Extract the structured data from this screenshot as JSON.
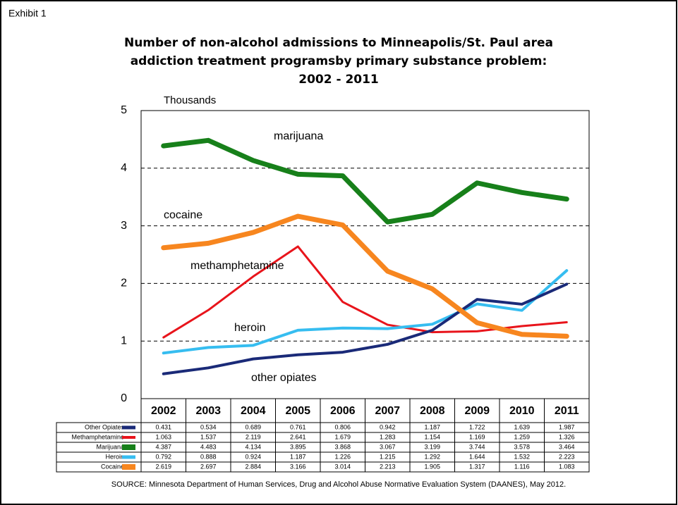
{
  "exhibit": "Exhibit 1",
  "chart_data": {
    "type": "line",
    "title": [
      "Number of non-alcohol admissions to Minneapolis/St. Paul area",
      "addiction treatment programsby primary substance problem:",
      "2002 - 2011"
    ],
    "y_label": "Thousands",
    "categories": [
      "2002",
      "2003",
      "2004",
      "2005",
      "2006",
      "2007",
      "2008",
      "2009",
      "2010",
      "2011"
    ],
    "ylim": [
      0,
      5
    ],
    "yticks": [
      0,
      1,
      2,
      3,
      4,
      5
    ],
    "grid": true,
    "series": [
      {
        "name": "Other Opiates",
        "color": "#1a2a78",
        "values": [
          0.431,
          0.534,
          0.689,
          0.761,
          0.806,
          0.942,
          1.187,
          1.722,
          1.639,
          1.987
        ]
      },
      {
        "name": "Methamphetamine",
        "color": "#e8141b",
        "values": [
          1.063,
          1.537,
          2.119,
          2.641,
          1.679,
          1.283,
          1.154,
          1.169,
          1.259,
          1.326
        ]
      },
      {
        "name": "Marijuana",
        "color": "#17801a",
        "values": [
          4.387,
          4.483,
          4.134,
          3.895,
          3.868,
          3.067,
          3.199,
          3.744,
          3.578,
          3.464
        ]
      },
      {
        "name": "Heroin",
        "color": "#36bdf0",
        "values": [
          0.792,
          0.888,
          0.924,
          1.187,
          1.226,
          1.215,
          1.292,
          1.644,
          1.532,
          2.223
        ]
      },
      {
        "name": "Cocaine",
        "color": "#f7861f",
        "values": [
          2.619,
          2.697,
          2.884,
          3.166,
          3.014,
          2.213,
          1.905,
          1.317,
          1.116,
          1.083
        ]
      }
    ],
    "annotations": [
      "marijuana",
      "cocaine",
      "methamphetamine",
      "heroin",
      "other opiates"
    ],
    "source": "SOURCE: Minnesota Department of Human Services, Drug and Alcohol Abuse Normative Evaluation System (DAANES), May 2012."
  }
}
